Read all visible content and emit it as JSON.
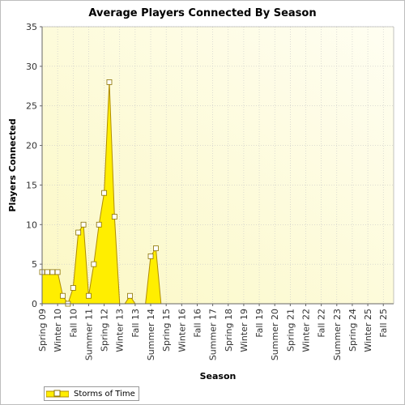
{
  "chart_data": {
    "type": "area",
    "title": "Average Players Connected By Season",
    "xlabel": "Season",
    "ylabel": "Players Connected",
    "ylim": [
      0,
      35
    ],
    "yticks": [
      0,
      5,
      10,
      15,
      20,
      25,
      30,
      35
    ],
    "xlim": [
      9,
      26
    ],
    "grid": true,
    "legend_position": "bottom-left",
    "colors": {
      "fill": "#ffee00",
      "line": "#b08c00",
      "marker_fill": "#ffffff",
      "marker_stroke": "#8a7000",
      "plot_bg_start": "#fbf8c4",
      "plot_bg_end": "#fffef2"
    },
    "x_tick_labels": [
      {
        "x": 9.0,
        "label": "Spring 09"
      },
      {
        "x": 9.75,
        "label": "Winter 10"
      },
      {
        "x": 10.5,
        "label": "Fall 10"
      },
      {
        "x": 11.25,
        "label": "Summer 11"
      },
      {
        "x": 12.0,
        "label": "Spring 12"
      },
      {
        "x": 12.75,
        "label": "Winter 13"
      },
      {
        "x": 13.5,
        "label": "Fall 13"
      },
      {
        "x": 14.25,
        "label": "Summer 14"
      },
      {
        "x": 15.0,
        "label": "Spring 15"
      },
      {
        "x": 15.75,
        "label": "Winter 16"
      },
      {
        "x": 16.5,
        "label": "Fall 16"
      },
      {
        "x": 17.25,
        "label": "Summer 17"
      },
      {
        "x": 18.0,
        "label": "Spring 18"
      },
      {
        "x": 18.75,
        "label": "Winter 19"
      },
      {
        "x": 19.5,
        "label": "Fall 19"
      },
      {
        "x": 20.25,
        "label": "Summer 20"
      },
      {
        "x": 21.0,
        "label": "Spring 21"
      },
      {
        "x": 21.75,
        "label": "Winter 22"
      },
      {
        "x": 22.5,
        "label": "Fall 22"
      },
      {
        "x": 23.25,
        "label": "Summer 23"
      },
      {
        "x": 24.0,
        "label": "Spring 24"
      },
      {
        "x": 24.75,
        "label": "Winter 25"
      },
      {
        "x": 25.5,
        "label": "Fall 25"
      }
    ],
    "series": [
      {
        "name": "Storms of Time",
        "points": [
          {
            "x": 9.0,
            "y": 4
          },
          {
            "x": 9.25,
            "y": 4
          },
          {
            "x": 9.5,
            "y": 4
          },
          {
            "x": 9.75,
            "y": 4
          },
          {
            "x": 10.0,
            "y": 1
          },
          {
            "x": 10.25,
            "y": 0
          },
          {
            "x": 10.5,
            "y": 2
          },
          {
            "x": 10.75,
            "y": 9
          },
          {
            "x": 11.0,
            "y": 10
          },
          {
            "x": 11.25,
            "y": 1
          },
          {
            "x": 11.5,
            "y": 5
          },
          {
            "x": 11.75,
            "y": 10
          },
          {
            "x": 12.0,
            "y": 14
          },
          {
            "x": 12.25,
            "y": 28
          },
          {
            "x": 12.5,
            "y": 11
          },
          {
            "x": 12.75,
            "y": 0
          },
          {
            "x": 13.0,
            "y": 0
          },
          {
            "x": 13.25,
            "y": 1
          },
          {
            "x": 13.5,
            "y": 0
          },
          {
            "x": 13.75,
            "y": 0
          },
          {
            "x": 14.0,
            "y": 0
          },
          {
            "x": 14.25,
            "y": 6
          },
          {
            "x": 14.5,
            "y": 7
          },
          {
            "x": 14.75,
            "y": 0
          },
          {
            "x": 15.0,
            "y": 0
          },
          {
            "x": 15.25,
            "y": 0
          },
          {
            "x": 15.5,
            "y": 0
          },
          {
            "x": 15.75,
            "y": 0
          },
          {
            "x": 16.0,
            "y": 0
          },
          {
            "x": 16.25,
            "y": 0
          },
          {
            "x": 16.5,
            "y": 0
          },
          {
            "x": 16.75,
            "y": 0
          },
          {
            "x": 17.0,
            "y": 0
          },
          {
            "x": 17.25,
            "y": 0
          },
          {
            "x": 17.5,
            "y": 0
          },
          {
            "x": 17.75,
            "y": 0
          },
          {
            "x": 18.0,
            "y": 0
          },
          {
            "x": 18.25,
            "y": 0
          },
          {
            "x": 18.5,
            "y": 0
          },
          {
            "x": 18.75,
            "y": 0
          },
          {
            "x": 19.0,
            "y": 0
          },
          {
            "x": 19.25,
            "y": 0
          },
          {
            "x": 19.5,
            "y": 0
          },
          {
            "x": 19.75,
            "y": 0
          },
          {
            "x": 20.0,
            "y": 0
          },
          {
            "x": 20.25,
            "y": 0
          },
          {
            "x": 20.5,
            "y": 0
          },
          {
            "x": 20.75,
            "y": 0
          },
          {
            "x": 21.0,
            "y": 0
          },
          {
            "x": 21.25,
            "y": 0
          },
          {
            "x": 21.5,
            "y": 0
          },
          {
            "x": 21.75,
            "y": 0
          },
          {
            "x": 22.0,
            "y": 0
          },
          {
            "x": 22.25,
            "y": 0
          },
          {
            "x": 22.5,
            "y": 0
          },
          {
            "x": 22.75,
            "y": 0
          },
          {
            "x": 23.0,
            "y": 0
          },
          {
            "x": 23.25,
            "y": 0
          },
          {
            "x": 23.5,
            "y": 0
          },
          {
            "x": 23.75,
            "y": 0
          },
          {
            "x": 24.0,
            "y": 0
          },
          {
            "x": 24.25,
            "y": 0
          },
          {
            "x": 24.5,
            "y": 0
          },
          {
            "x": 24.75,
            "y": 0
          },
          {
            "x": 25.0,
            "y": 0
          },
          {
            "x": 25.25,
            "y": 0
          },
          {
            "x": 25.5,
            "y": 0
          },
          {
            "x": 25.75,
            "y": 0
          },
          {
            "x": 26.0,
            "y": 0
          }
        ]
      }
    ]
  }
}
